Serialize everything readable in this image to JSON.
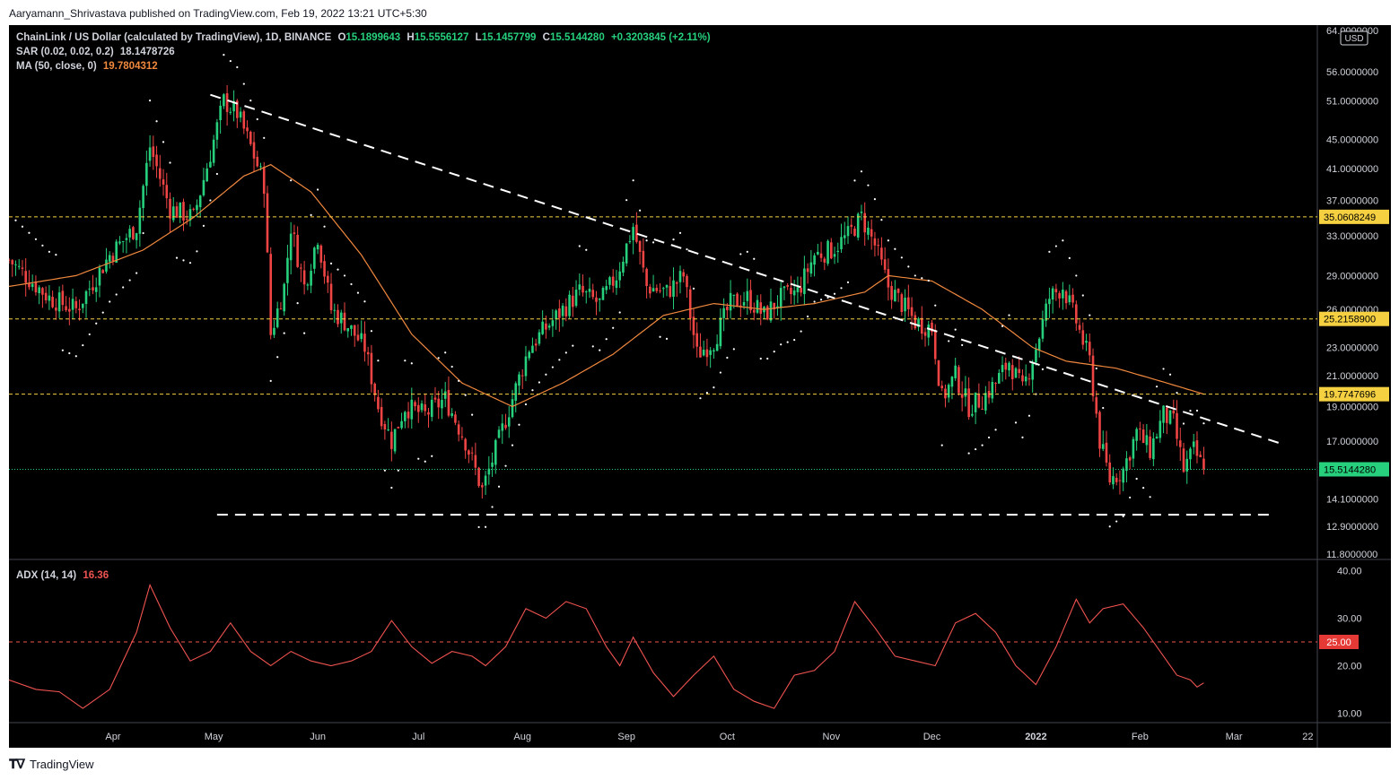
{
  "publisher": "Aaryamann_Shrivastava published on TradingView.com, Feb 19, 2022 13:21 UTC+5:30",
  "footer": {
    "brand": "TradingView",
    "logo_icon": "tradingview-logo-icon"
  },
  "legend": {
    "symbol": "ChainLink / US Dollar (calculated by TradingView), 1D, BINANCE",
    "o_label": "O",
    "o_value": "15.1899643",
    "h_label": "H",
    "h_value": "15.5556127",
    "l_label": "L",
    "l_value": "15.1457799",
    "c_label": "C",
    "c_value": "15.5144280",
    "change": "+0.3203845 (+2.11%)",
    "sar_label": "SAR (0.02, 0.02, 0.2)",
    "sar_value": "18.1478726",
    "ma_label": "MA (50, close, 0)",
    "ma_value": "19.7804312",
    "adx_label": "ADX (14, 14)",
    "adx_value": "16.36"
  },
  "colors": {
    "up": "#26d07c",
    "down": "#ef4444",
    "ma": "#f0883e",
    "adx": "#ef5350",
    "level": "#f5d142",
    "trend": "#ffffff",
    "bg": "#000000",
    "axis_text": "#d1d4dc"
  },
  "chart_data": [
    {
      "type": "candlestick",
      "currency": "USD",
      "y_scale": "log",
      "ylim": [
        11.8,
        64.0
      ],
      "y_ticks": [
        {
          "v": 64.0,
          "label": "64.0000000"
        },
        {
          "v": 56.0,
          "label": "56.0000000"
        },
        {
          "v": 51.0,
          "label": "51.0000000"
        },
        {
          "v": 45.0,
          "label": "45.0000000"
        },
        {
          "v": 41.0,
          "label": "41.0000000"
        },
        {
          "v": 37.0,
          "label": "37.0000000"
        },
        {
          "v": 33.0,
          "label": "33.0000000"
        },
        {
          "v": 29.0,
          "label": "29.0000000"
        },
        {
          "v": 26.0,
          "label": "26.0000000"
        },
        {
          "v": 23.0,
          "label": "23.0000000"
        },
        {
          "v": 21.0,
          "label": "21.0000000"
        },
        {
          "v": 19.0,
          "label": "19.0000000"
        },
        {
          "v": 17.0,
          "label": "17.0000000"
        },
        {
          "v": 14.1,
          "label": "14.1000000"
        },
        {
          "v": 12.9,
          "label": "12.9000000"
        },
        {
          "v": 11.8,
          "label": "11.8000000"
        }
      ],
      "x_ticks": [
        "Apr",
        "May",
        "Jun",
        "Jul",
        "Aug",
        "Sep",
        "Oct",
        "Nov",
        "Dec",
        "2022",
        "Feb",
        "Mar",
        "22"
      ],
      "x_tick_days": [
        31,
        61,
        92,
        122,
        153,
        184,
        214,
        245,
        275,
        306,
        337,
        365,
        387
      ],
      "price_closes": [
        {
          "d": 0,
          "v": 30.5
        },
        {
          "d": 12,
          "v": 27.0
        },
        {
          "d": 20,
          "v": 26.0
        },
        {
          "d": 30,
          "v": 31.0
        },
        {
          "d": 38,
          "v": 34.0
        },
        {
          "d": 42,
          "v": 44.0
        },
        {
          "d": 48,
          "v": 36.0
        },
        {
          "d": 55,
          "v": 35.0
        },
        {
          "d": 60,
          "v": 43.0
        },
        {
          "d": 64,
          "v": 51.0
        },
        {
          "d": 68,
          "v": 49.0
        },
        {
          "d": 72,
          "v": 44.0
        },
        {
          "d": 76,
          "v": 39.0
        },
        {
          "d": 78,
          "v": 24.0
        },
        {
          "d": 82,
          "v": 28.0
        },
        {
          "d": 84,
          "v": 34.0
        },
        {
          "d": 88,
          "v": 28.0
        },
        {
          "d": 92,
          "v": 33.0
        },
        {
          "d": 96,
          "v": 26.0
        },
        {
          "d": 100,
          "v": 25.0
        },
        {
          "d": 106,
          "v": 23.0
        },
        {
          "d": 110,
          "v": 19.0
        },
        {
          "d": 114,
          "v": 17.0
        },
        {
          "d": 118,
          "v": 19.0
        },
        {
          "d": 124,
          "v": 18.5
        },
        {
          "d": 130,
          "v": 19.5
        },
        {
          "d": 136,
          "v": 17.0
        },
        {
          "d": 141,
          "v": 14.5
        },
        {
          "d": 145,
          "v": 16.5
        },
        {
          "d": 150,
          "v": 19.5
        },
        {
          "d": 155,
          "v": 23.0
        },
        {
          "d": 160,
          "v": 24.5
        },
        {
          "d": 165,
          "v": 26.0
        },
        {
          "d": 170,
          "v": 27.5
        },
        {
          "d": 176,
          "v": 26.5
        },
        {
          "d": 181,
          "v": 29.0
        },
        {
          "d": 186,
          "v": 34.0
        },
        {
          "d": 190,
          "v": 28.0
        },
        {
          "d": 196,
          "v": 27.5
        },
        {
          "d": 201,
          "v": 29.0
        },
        {
          "d": 205,
          "v": 22.5
        },
        {
          "d": 210,
          "v": 23.5
        },
        {
          "d": 215,
          "v": 26.5
        },
        {
          "d": 220,
          "v": 27.0
        },
        {
          "d": 225,
          "v": 25.5
        },
        {
          "d": 230,
          "v": 27.0
        },
        {
          "d": 235,
          "v": 27.5
        },
        {
          "d": 240,
          "v": 31.0
        },
        {
          "d": 245,
          "v": 31.5
        },
        {
          "d": 250,
          "v": 33.0
        },
        {
          "d": 254,
          "v": 35.0
        },
        {
          "d": 258,
          "v": 32.0
        },
        {
          "d": 262,
          "v": 28.0
        },
        {
          "d": 266,
          "v": 26.5
        },
        {
          "d": 270,
          "v": 25.0
        },
        {
          "d": 275,
          "v": 24.5
        },
        {
          "d": 278,
          "v": 19.5
        },
        {
          "d": 282,
          "v": 21.0
        },
        {
          "d": 286,
          "v": 19.0
        },
        {
          "d": 290,
          "v": 19.5
        },
        {
          "d": 294,
          "v": 20.5
        },
        {
          "d": 298,
          "v": 22.0
        },
        {
          "d": 302,
          "v": 20.0
        },
        {
          "d": 306,
          "v": 23.0
        },
        {
          "d": 310,
          "v": 27.0
        },
        {
          "d": 314,
          "v": 28.0
        },
        {
          "d": 318,
          "v": 25.0
        },
        {
          "d": 322,
          "v": 22.0
        },
        {
          "d": 325,
          "v": 17.0
        },
        {
          "d": 328,
          "v": 15.0
        },
        {
          "d": 332,
          "v": 15.5
        },
        {
          "d": 336,
          "v": 17.5
        },
        {
          "d": 340,
          "v": 16.5
        },
        {
          "d": 344,
          "v": 18.5
        },
        {
          "d": 347,
          "v": 18.0
        },
        {
          "d": 350,
          "v": 15.5
        },
        {
          "d": 353,
          "v": 16.5
        },
        {
          "d": 356,
          "v": 15.5144
        }
      ],
      "ma50": [
        {
          "d": 0,
          "v": 28.0
        },
        {
          "d": 20,
          "v": 29.0
        },
        {
          "d": 40,
          "v": 31.5
        },
        {
          "d": 55,
          "v": 35.0
        },
        {
          "d": 70,
          "v": 40.0
        },
        {
          "d": 78,
          "v": 41.5
        },
        {
          "d": 90,
          "v": 38.0
        },
        {
          "d": 105,
          "v": 31.0
        },
        {
          "d": 120,
          "v": 24.0
        },
        {
          "d": 135,
          "v": 20.5
        },
        {
          "d": 150,
          "v": 19.0
        },
        {
          "d": 165,
          "v": 20.5
        },
        {
          "d": 180,
          "v": 22.5
        },
        {
          "d": 195,
          "v": 25.5
        },
        {
          "d": 210,
          "v": 26.5
        },
        {
          "d": 225,
          "v": 26.0
        },
        {
          "d": 240,
          "v": 26.5
        },
        {
          "d": 255,
          "v": 27.5
        },
        {
          "d": 262,
          "v": 29.0
        },
        {
          "d": 275,
          "v": 28.5
        },
        {
          "d": 290,
          "v": 26.0
        },
        {
          "d": 305,
          "v": 23.0
        },
        {
          "d": 315,
          "v": 22.0
        },
        {
          "d": 330,
          "v": 21.5
        },
        {
          "d": 345,
          "v": 20.5
        },
        {
          "d": 356,
          "v": 19.78
        }
      ],
      "levels": [
        {
          "v": 35.0608249,
          "label": "35.0608249",
          "color": "#f5d142"
        },
        {
          "v": 25.21589,
          "label": "25.2158900",
          "color": "#f5d142"
        },
        {
          "v": 19.7747696,
          "label": "19.7747696",
          "color": "#f5d142"
        }
      ],
      "last_price": {
        "v": 15.514428,
        "label": "15.5144280",
        "color": "#26d07c"
      },
      "trend_lines": [
        {
          "from": {
            "d": 60,
            "v": 52.0
          },
          "to": {
            "d": 380,
            "v": 16.8
          }
        },
        {
          "from": {
            "d": 62,
            "v": 13.4
          },
          "to": {
            "d": 377,
            "v": 13.4
          }
        }
      ]
    },
    {
      "type": "line",
      "ylim": [
        8.0,
        42.0
      ],
      "y_ticks": [
        {
          "v": 40,
          "label": "40.00"
        },
        {
          "v": 30,
          "label": "30.00"
        },
        {
          "v": 20,
          "label": "20.00"
        },
        {
          "v": 10,
          "label": "10.00"
        }
      ],
      "threshold": {
        "v": 25.0,
        "label": "25.00",
        "color": "#ef5350"
      },
      "series": [
        {
          "name": "ADX (14, 14)",
          "points": [
            {
              "d": 0,
              "v": 17.0
            },
            {
              "d": 8,
              "v": 15.0
            },
            {
              "d": 15,
              "v": 14.5
            },
            {
              "d": 22,
              "v": 11.0
            },
            {
              "d": 30,
              "v": 15.0
            },
            {
              "d": 38,
              "v": 27.0
            },
            {
              "d": 42,
              "v": 37.0
            },
            {
              "d": 48,
              "v": 28.0
            },
            {
              "d": 54,
              "v": 21.0
            },
            {
              "d": 60,
              "v": 23.0
            },
            {
              "d": 66,
              "v": 29.0
            },
            {
              "d": 72,
              "v": 23.0
            },
            {
              "d": 78,
              "v": 20.0
            },
            {
              "d": 84,
              "v": 23.0
            },
            {
              "d": 90,
              "v": 21.0
            },
            {
              "d": 96,
              "v": 20.0
            },
            {
              "d": 102,
              "v": 21.0
            },
            {
              "d": 108,
              "v": 23.0
            },
            {
              "d": 114,
              "v": 29.5
            },
            {
              "d": 120,
              "v": 24.0
            },
            {
              "d": 126,
              "v": 20.5
            },
            {
              "d": 132,
              "v": 23.0
            },
            {
              "d": 138,
              "v": 22.0
            },
            {
              "d": 142,
              "v": 20.0
            },
            {
              "d": 148,
              "v": 24.0
            },
            {
              "d": 154,
              "v": 32.0
            },
            {
              "d": 160,
              "v": 30.0
            },
            {
              "d": 166,
              "v": 33.5
            },
            {
              "d": 172,
              "v": 32.0
            },
            {
              "d": 178,
              "v": 24.0
            },
            {
              "d": 182,
              "v": 20.0
            },
            {
              "d": 186,
              "v": 26.0
            },
            {
              "d": 192,
              "v": 18.5
            },
            {
              "d": 198,
              "v": 13.5
            },
            {
              "d": 204,
              "v": 18.0
            },
            {
              "d": 210,
              "v": 22.0
            },
            {
              "d": 216,
              "v": 15.0
            },
            {
              "d": 222,
              "v": 12.5
            },
            {
              "d": 228,
              "v": 11.0
            },
            {
              "d": 234,
              "v": 18.0
            },
            {
              "d": 240,
              "v": 19.0
            },
            {
              "d": 246,
              "v": 23.0
            },
            {
              "d": 252,
              "v": 33.5
            },
            {
              "d": 258,
              "v": 28.0
            },
            {
              "d": 264,
              "v": 22.0
            },
            {
              "d": 270,
              "v": 21.0
            },
            {
              "d": 276,
              "v": 20.0
            },
            {
              "d": 282,
              "v": 29.0
            },
            {
              "d": 288,
              "v": 31.0
            },
            {
              "d": 294,
              "v": 27.0
            },
            {
              "d": 300,
              "v": 20.0
            },
            {
              "d": 306,
              "v": 16.0
            },
            {
              "d": 312,
              "v": 24.0
            },
            {
              "d": 318,
              "v": 34.0
            },
            {
              "d": 322,
              "v": 29.0
            },
            {
              "d": 326,
              "v": 32.0
            },
            {
              "d": 332,
              "v": 33.0
            },
            {
              "d": 338,
              "v": 28.0
            },
            {
              "d": 344,
              "v": 22.0
            },
            {
              "d": 348,
              "v": 18.0
            },
            {
              "d": 352,
              "v": 17.0
            },
            {
              "d": 354,
              "v": 15.5
            },
            {
              "d": 356,
              "v": 16.36
            }
          ]
        }
      ]
    }
  ]
}
